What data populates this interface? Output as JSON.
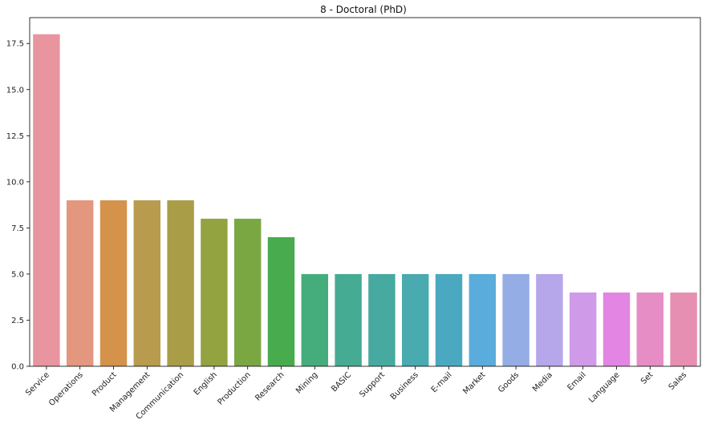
{
  "chart_data": {
    "type": "bar",
    "title": "8 - Doctoral (PhD)",
    "xlabel": "",
    "ylabel": "",
    "categories": [
      "Service",
      "Operations",
      "Product",
      "Management",
      "Communication",
      "English",
      "Production",
      "Research",
      "Mining",
      "BASIC",
      "Support",
      "Business",
      "E-mail",
      "Market",
      "Goods",
      "Media",
      "Email",
      "Language",
      "Set",
      "Sales"
    ],
    "values": [
      18,
      9,
      9,
      9,
      9,
      8,
      8,
      7,
      5,
      5,
      5,
      5,
      5,
      5,
      5,
      5,
      4,
      4,
      4,
      4
    ],
    "colors": [
      "#e8959f",
      "#e3977e",
      "#d4924b",
      "#b89b4c",
      "#a99e47",
      "#92a340",
      "#7ba743",
      "#48ac4f",
      "#45ad7c",
      "#46ab93",
      "#47aaa0",
      "#49aab0",
      "#4aa9c0",
      "#59acdb",
      "#95ade5",
      "#b6a6ea",
      "#cf9ae7",
      "#e385e2",
      "#e68dc6",
      "#e68fb2"
    ],
    "yticks": [
      "0.0",
      "2.5",
      "5.0",
      "7.5",
      "10.0",
      "12.5",
      "15.0",
      "17.5"
    ],
    "ylim": [
      0,
      18.9
    ],
    "grid": false
  }
}
